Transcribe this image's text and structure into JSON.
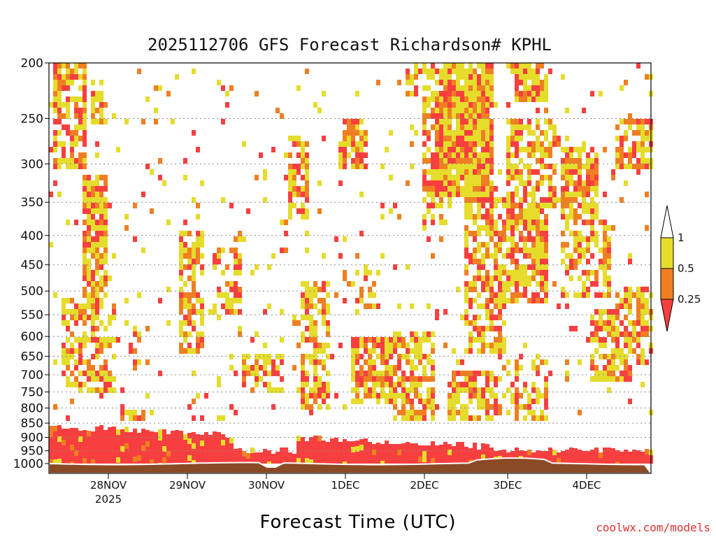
{
  "chart_data": {
    "type": "heatmap",
    "title": "2025112706 GFS Forecast Richardson# KPHL",
    "xlabel": "Forecast Time (UTC)",
    "ylabel": "",
    "y_scale": "log-pressure (inverted)",
    "y_ticks": [
      "200",
      "250",
      "300",
      "350",
      "400",
      "450",
      "500",
      "550",
      "600",
      "650",
      "700",
      "750",
      "800",
      "850",
      "900",
      "950",
      "1000"
    ],
    "x_ticks": [
      "28NOV",
      "29NOV",
      "30NOV",
      "1DEC",
      "2DEC",
      "3DEC",
      "4DEC"
    ],
    "x_tick_sublabel": "2025",
    "legend": {
      "placement": "right",
      "levels": [
        "1",
        "0.5",
        "0.25"
      ],
      "colors": [
        "#ffffff",
        "#e5dc2c",
        "#ef7f22",
        "#f83f3f"
      ],
      "class_meaning": [
        "> 1",
        "0.5 - 1",
        "0.25 - 0.5",
        "< 0.25"
      ]
    },
    "grid": "dotted horizontal lines at each pressure tick",
    "ground_color": "#8b4a26"
  },
  "footer": {
    "credit": "coolwx.com/models"
  }
}
